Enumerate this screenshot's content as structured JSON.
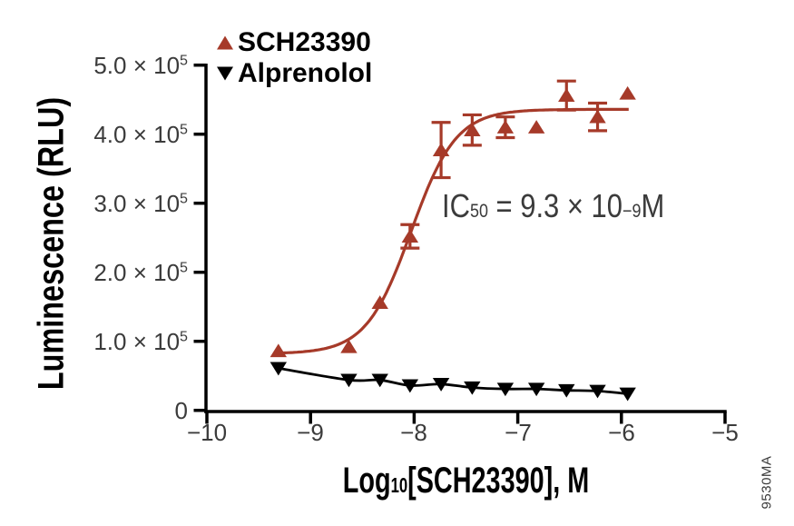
{
  "figure": {
    "background": "#ffffff",
    "watermark": "9530MA",
    "axis_color": "#000000",
    "tick_label_color": "#3b3b3b"
  },
  "legend": {
    "position": "top-left",
    "items": [
      {
        "label": "SCH23390",
        "marker": "triangle-up",
        "color": "#a63a29"
      },
      {
        "label": "Alprenolol",
        "marker": "triangle-down",
        "color": "#000000"
      }
    ]
  },
  "axes": {
    "y_title": "Luminescence (RLU)",
    "x_title_parts": {
      "prefix": "Log",
      "sub": "10",
      "suffix": "[SCH23390], M"
    },
    "y_ticks": [
      {
        "base": "5.0 × 10",
        "exp": "5",
        "value": 500000
      },
      {
        "base": "4.0 × 10",
        "exp": "5",
        "value": 400000
      },
      {
        "base": "3.0 × 10",
        "exp": "5",
        "value": 300000
      },
      {
        "base": "2.0 × 10",
        "exp": "5",
        "value": 200000
      },
      {
        "base": "1.0 × 10",
        "exp": "5",
        "value": 100000
      },
      {
        "base": "0",
        "exp": "",
        "value": 0
      }
    ],
    "x_ticks": [
      {
        "label": "−10",
        "value": -10
      },
      {
        "label": "−9",
        "value": -9
      },
      {
        "label": "−8",
        "value": -8
      },
      {
        "label": "−7",
        "value": -7
      },
      {
        "label": "−6",
        "value": -6
      },
      {
        "label": "−5",
        "value": -5
      }
    ]
  },
  "annotation": {
    "text": "IC50 = 9.3 × 10−9 M",
    "parts": {
      "prefix": "IC",
      "sub": "50",
      "mid": " = 9.3 × 10",
      "sup": "−9",
      "suffix": "M"
    }
  },
  "chart_data": {
    "type": "scatter",
    "title": "",
    "xlabel": "Log10[SCH23390], M",
    "ylabel": "Luminescence (RLU)",
    "xlim": [
      -10,
      -5
    ],
    "ylim": [
      0,
      500000
    ],
    "grid": false,
    "legend_position": "top-left",
    "annotation": "IC50 = 9.3 × 10−9 M",
    "series": [
      {
        "name": "SCH23390",
        "color": "#a63a29",
        "marker": "triangle-up",
        "x": [
          -9.31,
          -8.63,
          -8.33,
          -8.04,
          -7.74,
          -7.44,
          -7.12,
          -6.82,
          -6.53,
          -6.23,
          -5.94
        ],
        "y": [
          86000,
          92000,
          156000,
          252000,
          377000,
          406000,
          410000,
          410000,
          456000,
          425000,
          459000
        ],
        "yerr": [
          0,
          0,
          0,
          17000,
          40000,
          22000,
          15000,
          0,
          21000,
          20000,
          0
        ],
        "fit": {
          "model": "4PL-sigmoid",
          "bottom": 82000,
          "top": 436000,
          "log_ic50": -8.03,
          "hill": 2.0
        }
      },
      {
        "name": "Alprenolol",
        "color": "#000000",
        "marker": "triangle-down",
        "x": [
          -9.31,
          -8.63,
          -8.33,
          -8.04,
          -7.74,
          -7.44,
          -7.12,
          -6.82,
          -6.53,
          -6.23,
          -5.94
        ],
        "y": [
          61000,
          44000,
          44000,
          36000,
          38000,
          33000,
          31000,
          31000,
          29000,
          28000,
          24000
        ],
        "yerr": [
          0,
          0,
          0,
          0,
          0,
          0,
          0,
          0,
          0,
          0,
          0
        ],
        "fit": {
          "model": "smooth-spline"
        }
      }
    ]
  }
}
